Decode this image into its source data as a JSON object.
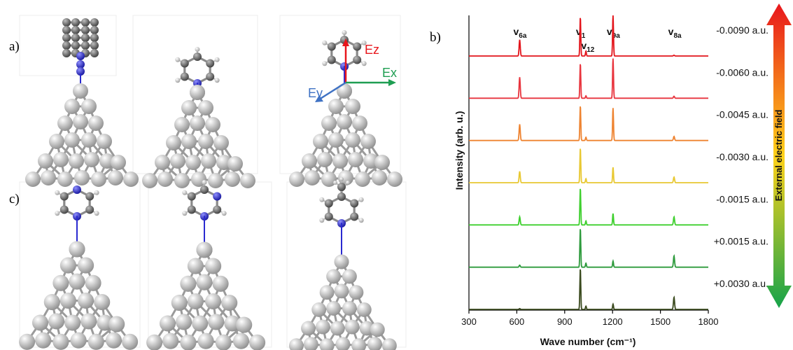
{
  "panels": {
    "a": "a)",
    "b": "b)",
    "c": "c)"
  },
  "axes_labels": {
    "ez": "Ez",
    "ex": "Ex",
    "ey": "Ey"
  },
  "colors": {
    "axis_z": "#e8161c",
    "axis_x": "#1f9e52",
    "axis_y": "#3f72c4",
    "nitrogen": "#2a2ad0",
    "carbon": "#7a7a7a",
    "hydrogen": "#f2f2f2",
    "metal": "#d8d8d8"
  },
  "field_arrow": {
    "label": "External electric field",
    "top_color": "#e8161c",
    "mid_color": "#ffd21a",
    "bottom_color": "#16a34a"
  },
  "chart_data": {
    "type": "line",
    "xlabel": "Wave number (cm⁻¹)",
    "ylabel": "Intensity (arb. u.)",
    "xlim": [
      300,
      1800
    ],
    "xticks": [
      "300",
      "600",
      "900",
      "1200",
      "1500",
      "1800"
    ],
    "peak_labels": [
      {
        "base": "v",
        "sub": "6a",
        "x": 620
      },
      {
        "base": "v",
        "sub": "1",
        "x": 1000
      },
      {
        "base": "v",
        "sub": "12",
        "x": 1045
      },
      {
        "base": "v",
        "sub": "9a",
        "x": 1205
      },
      {
        "base": "v",
        "sub": "8a",
        "x": 1590
      }
    ],
    "peak_positions": [
      618,
      998,
      1033,
      1203,
      1585
    ],
    "series": [
      {
        "name": "-0.0090 a.u.",
        "color": "#e3141b",
        "values": [
          0.4,
          0.95,
          0.12,
          1.0,
          0.02
        ]
      },
      {
        "name": "-0.0060 a.u.",
        "color": "#e8343d",
        "values": [
          0.52,
          0.85,
          0.06,
          0.98,
          0.05
        ]
      },
      {
        "name": "-0.0045 a.u.",
        "color": "#ee8330",
        "values": [
          0.4,
          0.85,
          0.08,
          0.8,
          0.1
        ]
      },
      {
        "name": "-0.0030 a.u.",
        "color": "#e8c832",
        "values": [
          0.28,
          0.85,
          0.1,
          0.38,
          0.14
        ]
      },
      {
        "name": "-0.0015 a.u.",
        "color": "#3ecf2e",
        "values": [
          0.2,
          0.9,
          0.1,
          0.28,
          0.2
        ]
      },
      {
        "name": "+0.0015 a.u.",
        "color": "#2d9a3c",
        "values": [
          0.05,
          0.95,
          0.1,
          0.15,
          0.28
        ]
      },
      {
        "name": "+0.0030 a.u.",
        "color": "#3a4a1e",
        "values": [
          0.02,
          1.0,
          0.08,
          0.13,
          0.3
        ]
      }
    ]
  }
}
